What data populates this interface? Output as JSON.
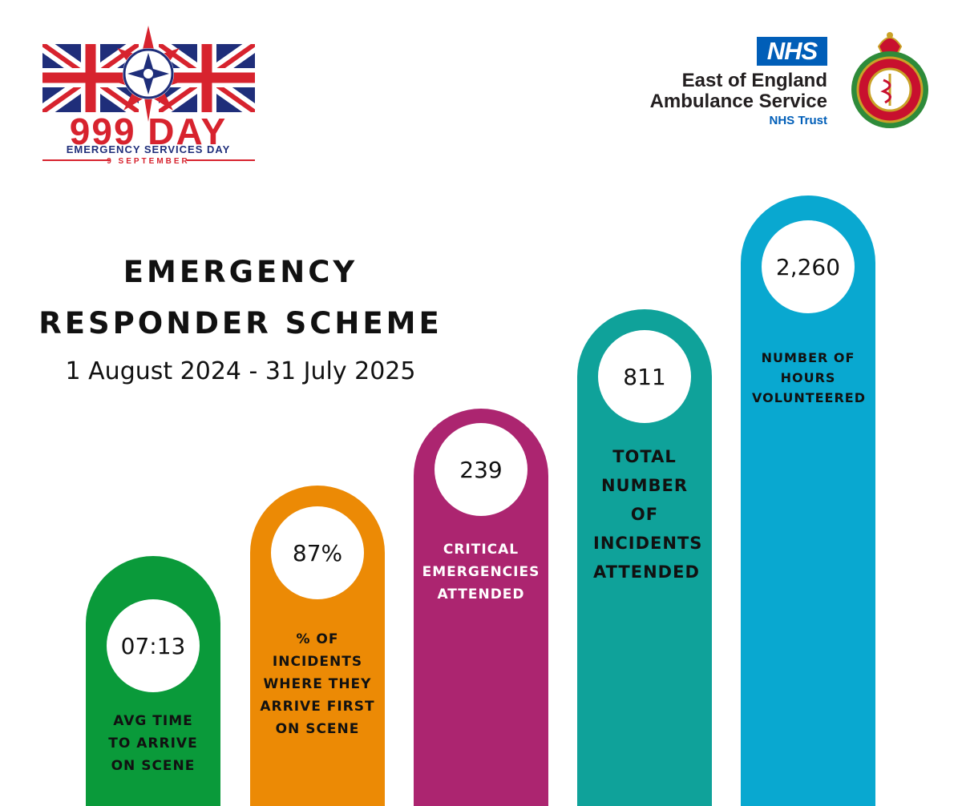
{
  "logo_999": {
    "main": "999 DAY",
    "sub": "EMERGENCY SERVICES DAY",
    "date": "9 SEPTEMBER"
  },
  "nhs": {
    "badge": "NHS",
    "org_line1": "East of England",
    "org_line2": "Ambulance Service",
    "trust": "NHS Trust"
  },
  "title": {
    "line1": "EMERGENCY",
    "line2": "RESPONDER SCHEME",
    "date_range": "1 August 2024 - 31 July 2025"
  },
  "stats": [
    {
      "value": "07:13",
      "label": "AVG TIME TO ARRIVE ON SCENE",
      "color": "#0a9a3a"
    },
    {
      "value": "87%",
      "label": "% OF INCIDENTS WHERE THEY ARRIVE FIRST ON SCENE",
      "color": "#ec8a05"
    },
    {
      "value": "239",
      "label": "CRITICAL EMERGENCIES ATTENDED",
      "color": "#ac2570"
    },
    {
      "value": "811",
      "label": "TOTAL NUMBER OF INCIDENTS ATTENDED",
      "color": "#0fa29a"
    },
    {
      "value": "2,260",
      "label": "NUMBER OF HOURS VOLUNTEERED",
      "color": "#09a8d0"
    }
  ]
}
